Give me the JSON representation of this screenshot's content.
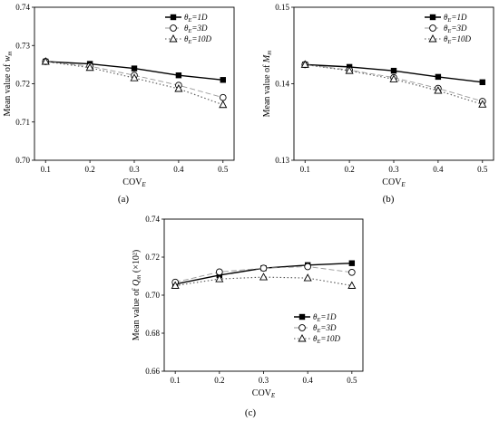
{
  "chart_data": [
    {
      "type": "line",
      "panel_label": "(a)",
      "xlabel_main": "COV",
      "xlabel_sub": "E",
      "ylabel_main": "Mean value of ",
      "ylabel_var": "w",
      "ylabel_sub": "m",
      "ylabel_suffix": "",
      "x": [
        0.1,
        0.2,
        0.3,
        0.4,
        0.5
      ],
      "x_ticks": [
        "0.1",
        "0.2",
        "0.3",
        "0.4",
        "0.5"
      ],
      "ylim": [
        0.7,
        0.74
      ],
      "y_ticks": [
        0.7,
        0.71,
        0.72,
        0.73,
        0.74
      ],
      "y_tick_labels": [
        "0.70",
        "0.71",
        "0.72",
        "0.73",
        "0.74"
      ],
      "legend_position": "top-right",
      "series": [
        {
          "name": "θE=1D",
          "name_main": "θ",
          "name_sub": "E",
          "name_eq": "=1D",
          "marker": "square-filled",
          "line": "solid",
          "values": [
            0.7258,
            0.7252,
            0.724,
            0.7222,
            0.721
          ]
        },
        {
          "name": "θE=3D",
          "name_main": "θ",
          "name_sub": "E",
          "name_eq": "=3D",
          "marker": "circle-open",
          "line": "dash",
          "values": [
            0.7258,
            0.7246,
            0.7222,
            0.7196,
            0.7164
          ]
        },
        {
          "name": "θE=10D",
          "name_main": "θ",
          "name_sub": "E",
          "name_eq": "=10D",
          "marker": "triangle-open",
          "line": "dot",
          "values": [
            0.7258,
            0.7242,
            0.7215,
            0.7187,
            0.7145
          ]
        }
      ]
    },
    {
      "type": "line",
      "panel_label": "(b)",
      "xlabel_main": "COV",
      "xlabel_sub": "E",
      "ylabel_main": "Mean value of ",
      "ylabel_var": "M",
      "ylabel_sub": "m",
      "ylabel_suffix": "",
      "x": [
        0.1,
        0.2,
        0.3,
        0.4,
        0.5
      ],
      "x_ticks": [
        "0.1",
        "0.2",
        "0.3",
        "0.4",
        "0.5"
      ],
      "ylim": [
        0.13,
        0.15
      ],
      "y_ticks": [
        0.13,
        0.14,
        0.15
      ],
      "y_tick_labels": [
        "0.13",
        "0.14",
        "0.15"
      ],
      "legend_position": "top-right",
      "series": [
        {
          "name": "θE=1D",
          "name_main": "θ",
          "name_sub": "E",
          "name_eq": "=1D",
          "marker": "square-filled",
          "line": "solid",
          "values": [
            0.1425,
            0.1422,
            0.1417,
            0.1409,
            0.1402
          ]
        },
        {
          "name": "θE=3D",
          "name_main": "θ",
          "name_sub": "E",
          "name_eq": "=3D",
          "marker": "circle-open",
          "line": "dash",
          "values": [
            0.1425,
            0.1418,
            0.1408,
            0.1394,
            0.1377
          ]
        },
        {
          "name": "θE=10D",
          "name_main": "θ",
          "name_sub": "E",
          "name_eq": "=10D",
          "marker": "triangle-open",
          "line": "dot",
          "values": [
            0.1425,
            0.1417,
            0.1406,
            0.1391,
            0.1373
          ]
        }
      ]
    },
    {
      "type": "line",
      "panel_label": "(c)",
      "xlabel_main": "COV",
      "xlabel_sub": "E",
      "ylabel_main": "Mean value of ",
      "ylabel_var": "Q",
      "ylabel_sub": "m",
      "ylabel_suffix": " (×10²)",
      "x": [
        0.1,
        0.2,
        0.3,
        0.4,
        0.5
      ],
      "x_ticks": [
        "0.1",
        "0.2",
        "0.3",
        "0.4",
        "0.5"
      ],
      "ylim": [
        0.66,
        0.74
      ],
      "y_ticks": [
        0.66,
        0.68,
        0.7,
        0.72,
        0.74
      ],
      "y_tick_labels": [
        "0.66",
        "0.68",
        "0.70",
        "0.72",
        "0.74"
      ],
      "legend_position": "center-right",
      "series": [
        {
          "name": "θE=1D",
          "name_main": "θ",
          "name_sub": "E",
          "name_eq": "=1D",
          "marker": "square-filled",
          "line": "solid",
          "values": [
            0.7058,
            0.7105,
            0.7142,
            0.7158,
            0.7168
          ]
        },
        {
          "name": "θE=3D",
          "name_main": "θ",
          "name_sub": "E",
          "name_eq": "=3D",
          "marker": "circle-open",
          "line": "dash",
          "values": [
            0.7068,
            0.7122,
            0.7142,
            0.715,
            0.712
          ]
        },
        {
          "name": "θE=10D",
          "name_main": "θ",
          "name_sub": "E",
          "name_eq": "=10D",
          "marker": "triangle-open",
          "line": "dot",
          "values": [
            0.705,
            0.7085,
            0.7095,
            0.709,
            0.705
          ]
        }
      ]
    }
  ]
}
